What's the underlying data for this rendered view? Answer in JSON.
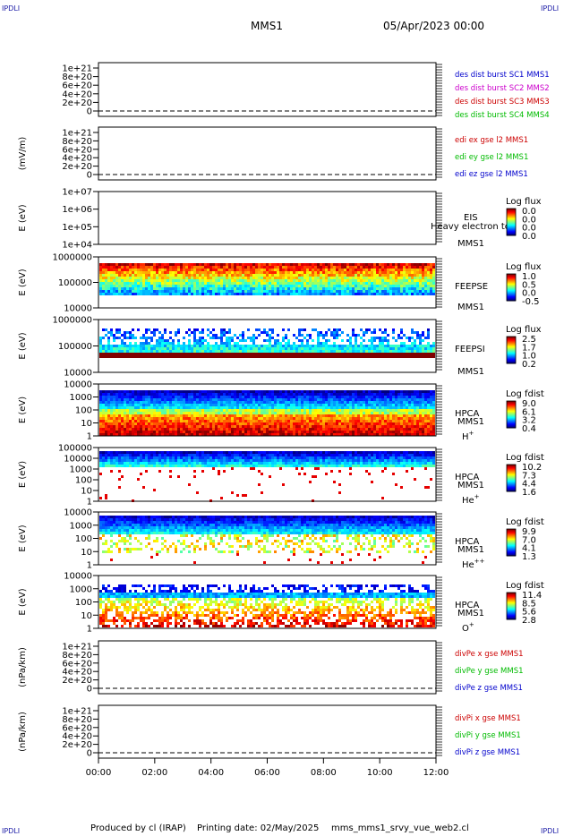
{
  "header": {
    "corner_mark": "IPDLI",
    "mission": "MMS1",
    "date": "05/Apr/2023 00:00"
  },
  "footer": {
    "produced_by": "Produced by cl (IRAP)",
    "printing_date": "Printing date: 02/May/2025",
    "script_name": "mms_mms1_srvy_vue_web2.cl"
  },
  "time_axis": {
    "ticks": [
      "00:00",
      "02:00",
      "04:00",
      "06:00",
      "08:00",
      "10:00",
      "12:00"
    ],
    "range_hours": [
      0,
      12
    ]
  },
  "chart_data": [
    {
      "type": "line",
      "ylabel": "",
      "yticks": [
        "1e+21",
        "8e+20",
        "6e+20",
        "4e+20",
        "2e+20",
        "0"
      ],
      "ylim": [
        0,
        1e+21
      ],
      "ref_line_y": 0,
      "legend": [
        {
          "name": "des dist burst SC1 MMS1",
          "color": "#0000cc"
        },
        {
          "name": "des dist burst SC2 MMS2",
          "color": "#cc00cc"
        },
        {
          "name": "des dist burst SC3 MMS3",
          "color": "#cc0000"
        },
        {
          "name": "des dist burst SC4 MMS4",
          "color": "#00bb00"
        }
      ]
    },
    {
      "type": "line",
      "ylabel": "(mV/m)",
      "yticks": [
        "1e+21",
        "8e+20",
        "6e+20",
        "4e+20",
        "2e+20",
        "0"
      ],
      "ylim": [
        0,
        1e+21
      ],
      "ref_line_y": 0,
      "legend": [
        {
          "name": "edi ex gse l2 MMS1",
          "color": "#cc0000"
        },
        {
          "name": "edi ey gse l2 MMS1",
          "color": "#00bb00"
        },
        {
          "name": "edi ez gse l2 MMS1",
          "color": "#0000cc"
        }
      ]
    },
    {
      "type": "heatmap",
      "ylabel": "E (eV)",
      "yticks": [
        "1e+07",
        "1e+06",
        "1e+05",
        "1e+04"
      ],
      "ylim": [
        10000,
        10000000
      ],
      "log_y": true,
      "instrument": "EIS",
      "spacecraft": "MMS1",
      "species": "",
      "extra_label": "Heavy electron to",
      "colorbar_title": "Log flux",
      "colorbar_ticks": [
        "0.0",
        "0.0",
        "0.0",
        "0.0"
      ],
      "empty": true
    },
    {
      "type": "heatmap",
      "ylabel": "E (eV)",
      "yticks": [
        "1000000",
        "100000",
        "10000"
      ],
      "ylim": [
        10000,
        1000000
      ],
      "log_y": true,
      "instrument": "FEEPSE",
      "spacecraft": "MMS1",
      "species": "",
      "colorbar_title": "Log flux",
      "colorbar_ticks": [
        "1.0",
        "0.5",
        "0.0",
        "-0.5"
      ],
      "pattern": "feepse"
    },
    {
      "type": "heatmap",
      "ylabel": "E (eV)",
      "yticks": [
        "1000000",
        "100000",
        "10000"
      ],
      "ylim": [
        10000,
        1000000
      ],
      "log_y": true,
      "instrument": "FEEPSI",
      "spacecraft": "MMS1",
      "species": "",
      "colorbar_title": "Log flux",
      "colorbar_ticks": [
        "2.5",
        "1.7",
        "1.0",
        "0.2"
      ],
      "pattern": "feepsi"
    },
    {
      "type": "heatmap",
      "ylabel": "E (eV)",
      "yticks": [
        "10000",
        "1000",
        "100",
        "10",
        "1"
      ],
      "ylim": [
        1,
        30000
      ],
      "log_y": true,
      "instrument": "HPCA",
      "spacecraft": "MMS1",
      "species": "H",
      "species_charge": "+",
      "colorbar_title": "Log fdist",
      "colorbar_ticks": [
        "9.0",
        "6.1",
        "3.2",
        "0.4"
      ],
      "pattern": "hplus"
    },
    {
      "type": "heatmap",
      "ylabel": "E (eV)",
      "yticks": [
        "100000",
        "10000",
        "1000",
        "100",
        "10",
        "1"
      ],
      "ylim": [
        1,
        100000
      ],
      "log_y": true,
      "instrument": "HPCA",
      "spacecraft": "MMS1",
      "species": "He",
      "species_charge": "+",
      "colorbar_title": "Log fdist",
      "colorbar_ticks": [
        "10.2",
        "7.3",
        "4.4",
        "1.6"
      ],
      "pattern": "heplus"
    },
    {
      "type": "heatmap",
      "ylabel": "E (eV)",
      "yticks": [
        "10000",
        "1000",
        "100",
        "10",
        "1"
      ],
      "ylim": [
        1,
        30000
      ],
      "log_y": true,
      "instrument": "HPCA",
      "spacecraft": "MMS1",
      "species": "He",
      "species_charge": "++",
      "colorbar_title": "Log fdist",
      "colorbar_ticks": [
        "9.9",
        "7.0",
        "4.1",
        "1.3"
      ],
      "pattern": "hepp"
    },
    {
      "type": "heatmap",
      "ylabel": "E (eV)",
      "yticks": [
        "10000",
        "1000",
        "100",
        "10",
        "1"
      ],
      "ylim": [
        1,
        30000
      ],
      "log_y": true,
      "instrument": "HPCA",
      "spacecraft": "MMS1",
      "species": "O",
      "species_charge": "+",
      "colorbar_title": "Log fdist",
      "colorbar_ticks": [
        "11.4",
        "8.5",
        "5.6",
        "2.8"
      ],
      "pattern": "oplus"
    },
    {
      "type": "line",
      "ylabel": "(nPa/km)",
      "yticks": [
        "1e+21",
        "8e+20",
        "6e+20",
        "4e+20",
        "2e+20",
        "0"
      ],
      "ylim": [
        0,
        1e+21
      ],
      "ref_line_y": 0,
      "legend": [
        {
          "name": "divPe x gse MMS1",
          "color": "#cc0000"
        },
        {
          "name": "divPe y gse MMS1",
          "color": "#00bb00"
        },
        {
          "name": "divPe z gse MMS1",
          "color": "#0000cc"
        }
      ]
    },
    {
      "type": "line",
      "ylabel": "(nPa/km)",
      "yticks": [
        "1e+21",
        "8e+20",
        "6e+20",
        "4e+20",
        "2e+20",
        "0"
      ],
      "ylim": [
        0,
        1e+21
      ],
      "ref_line_y": 0,
      "legend": [
        {
          "name": "divPi x gse MMS1",
          "color": "#cc0000"
        },
        {
          "name": "divPi y gse MMS1",
          "color": "#00bb00"
        },
        {
          "name": "divPi z gse MMS1",
          "color": "#0000cc"
        }
      ]
    }
  ]
}
